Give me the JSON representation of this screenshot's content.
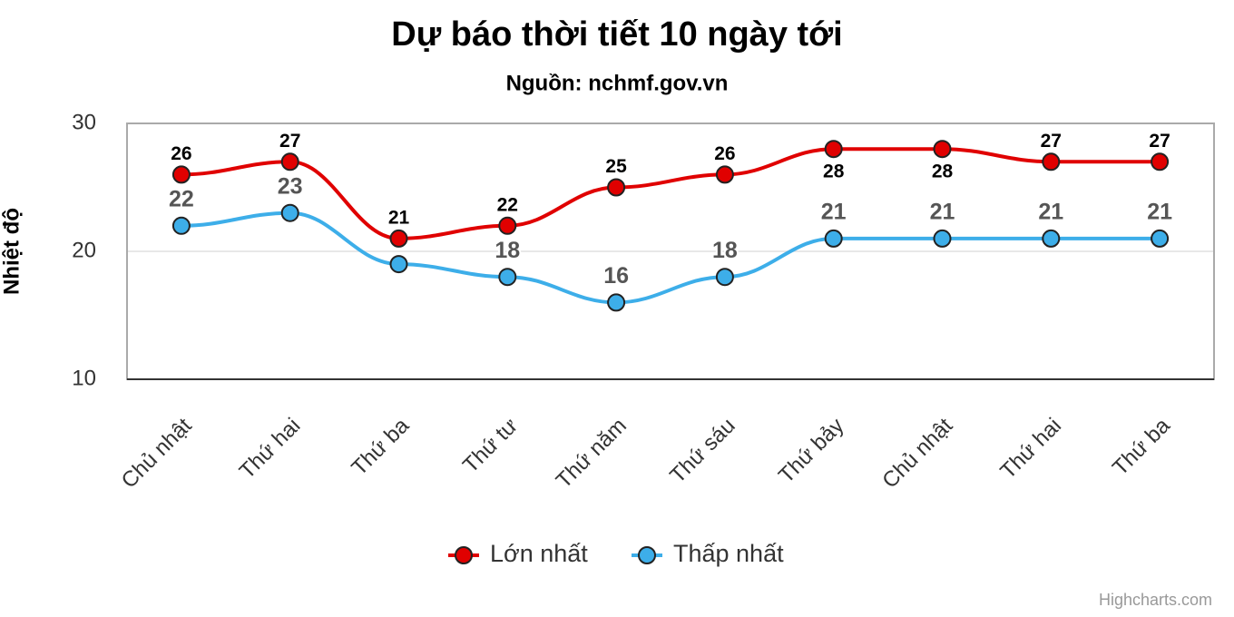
{
  "chart_data": {
    "type": "line",
    "title": "Dự báo thời tiết 10 ngày tới",
    "subtitle": "Nguồn: nchmf.gov.vn",
    "y_label": "Nhiệt độ",
    "credits": "Highcharts.com",
    "categories": [
      "Chủ nhật",
      "Thứ hai",
      "Thứ ba",
      "Thứ tư",
      "Thứ năm",
      "Thứ sáu",
      "Thứ bảy",
      "Chủ nhật",
      "Thứ hai",
      "Thứ ba"
    ],
    "series": [
      {
        "name": "Lớn nhất",
        "color": "#e00000",
        "values": [
          26,
          27,
          21,
          22,
          25,
          26,
          28,
          28,
          27,
          27
        ]
      },
      {
        "name": "Thấp nhất",
        "color": "#3daee9",
        "values": [
          22,
          23,
          19,
          18,
          16,
          18,
          21,
          21,
          21,
          21
        ],
        "value_labels": [
          "22",
          "23",
          null,
          "18",
          "16",
          "18",
          "21",
          "21",
          "21",
          "21"
        ]
      }
    ],
    "ylim": [
      10,
      30
    ],
    "yticks": [
      10,
      20,
      30
    ],
    "grid": true,
    "legend": "bottom"
  }
}
